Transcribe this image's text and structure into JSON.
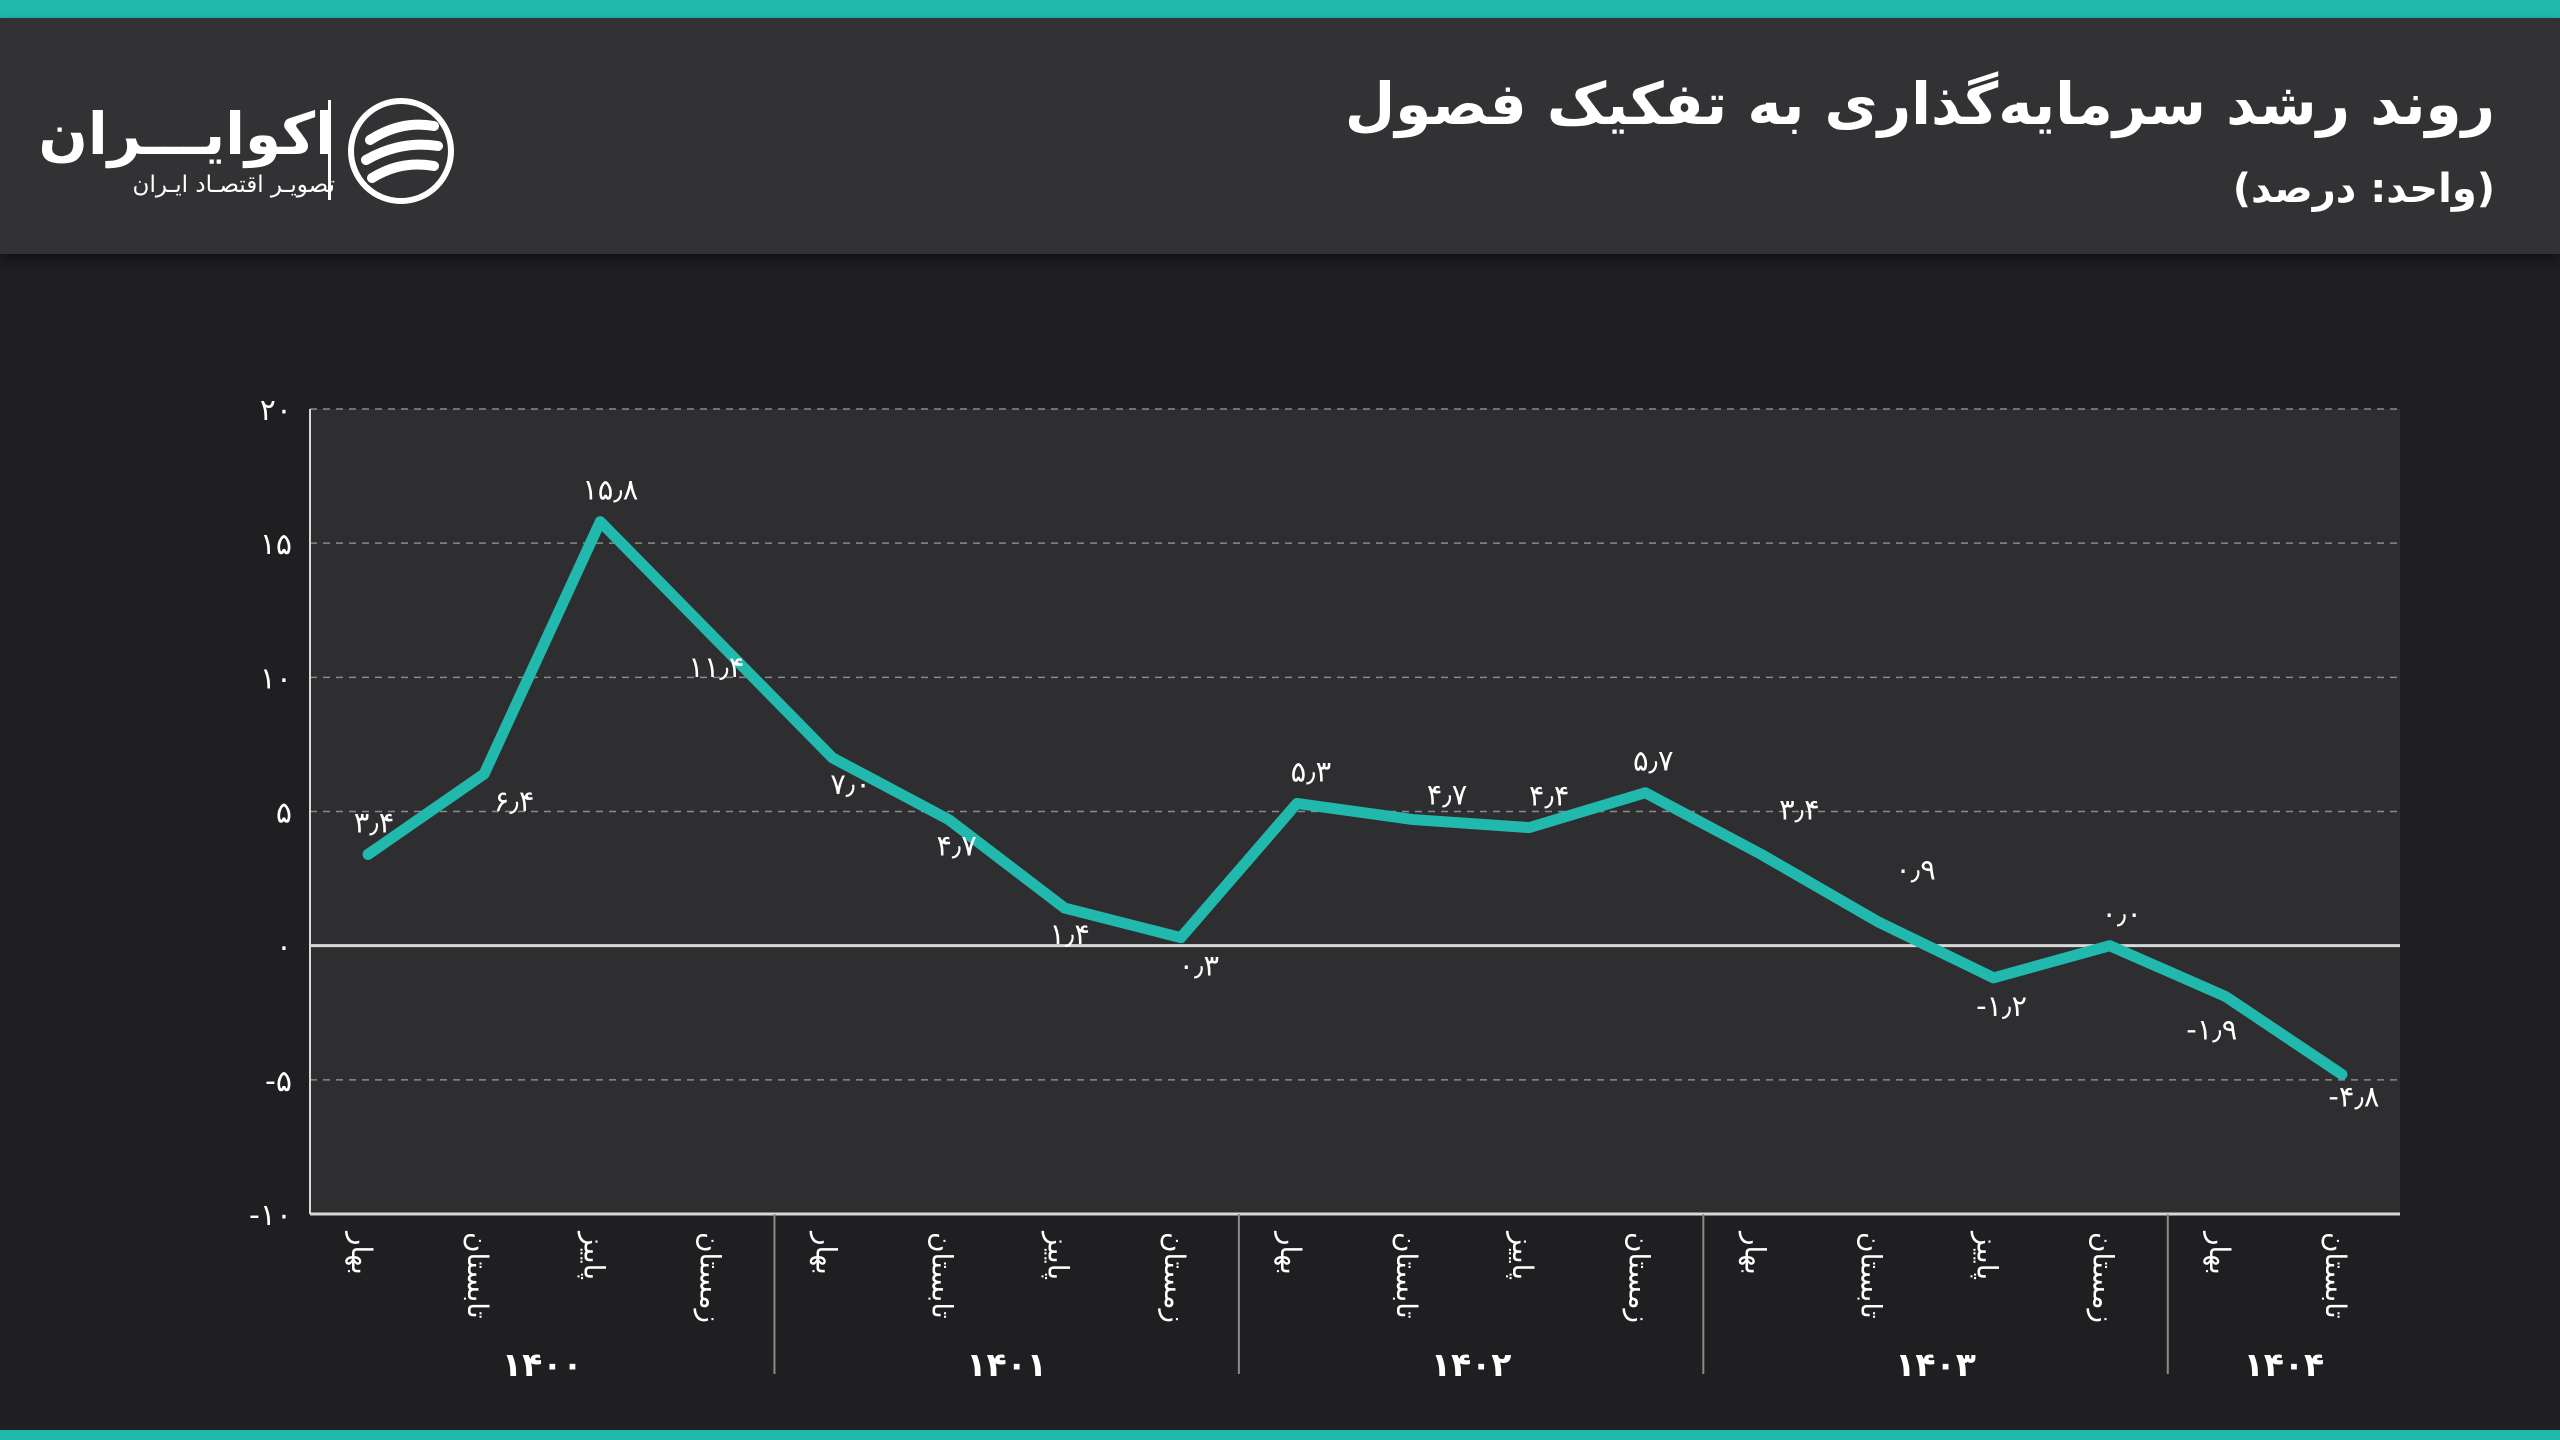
{
  "header": {
    "title": "روند رشد سرمایه‌گذاری به تفکیک فصول",
    "subtitle": "(واحد: درصد)"
  },
  "logo": {
    "name": "اکوایـــران",
    "tagline": "تصویـر اقتصـاد ایـران"
  },
  "colors": {
    "accent": "#21b8ad",
    "header_bg": "#323133",
    "page_bg": "#1f1e20",
    "plot_bg": "#2e2d2f"
  },
  "chart_data": {
    "type": "line",
    "title": "روند رشد سرمایه‌گذاری به تفکیک فصول",
    "unit": "(واحد: درصد)",
    "ylim": [
      -10,
      20
    ],
    "y_ticks": [
      {
        "value": 20,
        "label": "۲۰"
      },
      {
        "value": 15,
        "label": "۱۵"
      },
      {
        "value": 10,
        "label": "۱۰"
      },
      {
        "value": 5,
        "label": "۵"
      },
      {
        "value": 0,
        "label": "۰"
      },
      {
        "value": -5,
        "label": "-۵"
      },
      {
        "value": -10,
        "label": "-۱۰"
      }
    ],
    "grid": true,
    "categories": [
      "بهار",
      "تابستان",
      "پاییز",
      "زمستان",
      "بهار",
      "تابستان",
      "پاییز",
      "زمستان",
      "بهار",
      "تابستان",
      "پاییز",
      "زمستان",
      "بهار",
      "تابستان",
      "پاییز",
      "زمستان",
      "بهار",
      "تابستان"
    ],
    "year_groups": [
      {
        "label": "۱۴۰۰",
        "count": 4
      },
      {
        "label": "۱۴۰۱",
        "count": 4
      },
      {
        "label": "۱۴۰۲",
        "count": 4
      },
      {
        "label": "۱۴۰۳",
        "count": 4
      },
      {
        "label": "۱۴۰۴",
        "count": 2
      }
    ],
    "series": [
      {
        "values": [
          3.4,
          6.4,
          15.8,
          11.4,
          7.0,
          4.7,
          1.4,
          0.3,
          5.3,
          4.7,
          4.4,
          5.7,
          3.4,
          0.9,
          -1.2,
          0.0,
          -1.9,
          -4.8
        ],
        "labels": [
          "۳٫۴",
          "۶٫۴",
          "۱۵٫۸",
          "۱۱٫۴",
          "۷٫۰",
          "۴٫۷",
          "۱٫۴",
          "۰٫۳",
          "۵٫۳",
          "۴٫۷",
          "۴٫۴",
          "۵٫۷",
          "۳٫۴",
          "۰٫۹",
          "-۱٫۲",
          "۰٫۰",
          "-۱٫۹",
          "-۴٫۸"
        ]
      }
    ]
  }
}
